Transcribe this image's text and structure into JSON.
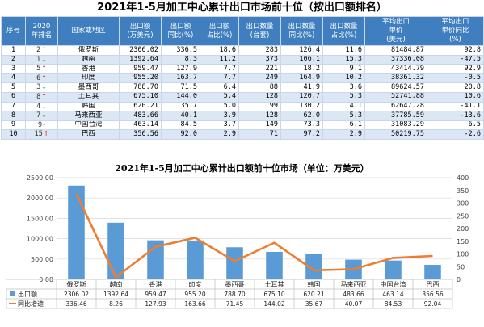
{
  "title": "2021年1-5月加工中心累计出口市场前十位（按出口额排名）",
  "table": {
    "headers": [
      "序号",
      "2020\n年排名",
      "国家或地区",
      "出口额\n(万美元)",
      "出口额\n同比(%)",
      "出口额\n占比(%)",
      "出口数量\n(台套)",
      "出口数量\n同比(%)",
      "出口数量\n占比(%)",
      "平均出口\n单价\n(美元)",
      "平均出口\n单价同比\n(%)"
    ],
    "rows": [
      {
        "no": "1",
        "prev": "2",
        "trend": "up",
        "country": "俄罗斯",
        "export": "2306.02",
        "yoy": "336.5",
        "share": "18.6",
        "qty": "283",
        "qty_yoy": "126.4",
        "qty_share": "11.6",
        "price": "81484.87",
        "price_yoy": "92.8"
      },
      {
        "no": "2",
        "prev": "1",
        "trend": "down",
        "country": "越南",
        "export": "1392.64",
        "yoy": "8.3",
        "share": "11.2",
        "qty": "373",
        "qty_yoy": "106.1",
        "qty_share": "15.3",
        "price": "37336.08",
        "price_yoy": "-47.5"
      },
      {
        "no": "3",
        "prev": "5",
        "trend": "up",
        "country": "香港",
        "export": "959.47",
        "yoy": "127.9",
        "share": "7.7",
        "qty": "221",
        "qty_yoy": "18.2",
        "qty_share": "9.1",
        "price": "43414.79",
        "price_yoy": "92.9"
      },
      {
        "no": "4",
        "prev": "6",
        "trend": "up",
        "country": "印度",
        "export": "955.20",
        "yoy": "163.7",
        "share": "7.7",
        "qty": "249",
        "qty_yoy": "164.9",
        "qty_share": "10.2",
        "price": "38361.32",
        "price_yoy": "-0.5"
      },
      {
        "no": "5",
        "prev": "3",
        "trend": "down",
        "country": "墨西哥",
        "export": "788.70",
        "yoy": "71.5",
        "share": "6.4",
        "qty": "88",
        "qty_yoy": "41.9",
        "qty_share": "3.6",
        "price": "89624.57",
        "price_yoy": "20.8"
      },
      {
        "no": "6",
        "prev": "8",
        "trend": "up",
        "country": "土耳其",
        "export": "675.10",
        "yoy": "144.0",
        "share": "5.4",
        "qty": "128",
        "qty_yoy": "120.7",
        "qty_share": "5.3",
        "price": "52741.88",
        "price_yoy": "10.6"
      },
      {
        "no": "7",
        "prev": "4",
        "trend": "down",
        "country": "韩国",
        "export": "620.21",
        "yoy": "35.7",
        "share": "5.0",
        "qty": "99",
        "qty_yoy": "130.2",
        "qty_share": "4.1",
        "price": "62647.28",
        "price_yoy": "-41.1"
      },
      {
        "no": "8",
        "prev": "7",
        "trend": "down",
        "country": "马来西亚",
        "export": "483.66",
        "yoy": "40.1",
        "share": "3.9",
        "qty": "128",
        "qty_yoy": "62.0",
        "qty_share": "5.3",
        "price": "37785.59",
        "price_yoy": "-13.6"
      },
      {
        "no": "9",
        "prev": "9",
        "trend": "dash",
        "country": "中国台湾",
        "export": "463.14",
        "yoy": "84.5",
        "share": "3.7",
        "qty": "149",
        "qty_yoy": "73.3",
        "qty_share": "6.1",
        "price": "31083.29",
        "price_yoy": "6.5"
      },
      {
        "no": "10",
        "prev": "15",
        "trend": "up",
        "country": "巴西",
        "export": "356.56",
        "yoy": "92.0",
        "share": "2.9",
        "qty": "71",
        "qty_yoy": "97.2",
        "qty_share": "2.9",
        "price": "50219.75",
        "price_yoy": "-2.6"
      }
    ]
  },
  "trend_symbols": {
    "up": "↑",
    "down": "↓",
    "dash": "-"
  },
  "colors": {
    "header_bg": "#3f7fbf",
    "band": "#dbe7f4",
    "bar": "#5b9bd5",
    "line": "#ed7d31",
    "up": "#d62020",
    "down": "#2aa3a8"
  },
  "chart_data": {
    "type": "bar",
    "title": "2021年1-5月加工中心累计出口额前十位市场（单位：万美元）",
    "categories": [
      "俄罗斯",
      "越南",
      "香港",
      "印度",
      "墨西哥",
      "土耳其",
      "韩国",
      "马来西亚",
      "中国台湾",
      "巴西"
    ],
    "series": [
      {
        "name": "出口额",
        "kind": "bar",
        "axis": "left",
        "values": [
          2306.02,
          1392.64,
          959.47,
          955.2,
          788.7,
          675.1,
          620.21,
          483.66,
          463.14,
          356.56
        ]
      },
      {
        "name": "同比增速",
        "kind": "line",
        "axis": "right",
        "values": [
          336.46,
          8.26,
          127.93,
          163.66,
          71.45,
          144.02,
          35.67,
          40.07,
          84.53,
          92.04
        ]
      }
    ],
    "series_labels": [
      [
        "2306.02",
        "1392.64",
        "959.47",
        "955.20",
        "788.70",
        "675.10",
        "620.21",
        "483.66",
        "463.14",
        "356.56"
      ],
      [
        "336.46",
        "8.26",
        "127.93",
        "163.66",
        "71.45",
        "144.02",
        "35.67",
        "40.07",
        "84.53",
        "92.04"
      ]
    ],
    "ylim": [
      0,
      2500
    ],
    "y_ticks": [
      "0.00",
      "500.00",
      "1000.00",
      "1500.00",
      "2000.00",
      "2500.00"
    ],
    "y2lim": [
      0,
      400
    ],
    "y2_ticks": [
      "0",
      "50",
      "100",
      "150",
      "200",
      "250",
      "300",
      "350",
      "400"
    ],
    "grid": true,
    "legend": "bottom-table"
  }
}
